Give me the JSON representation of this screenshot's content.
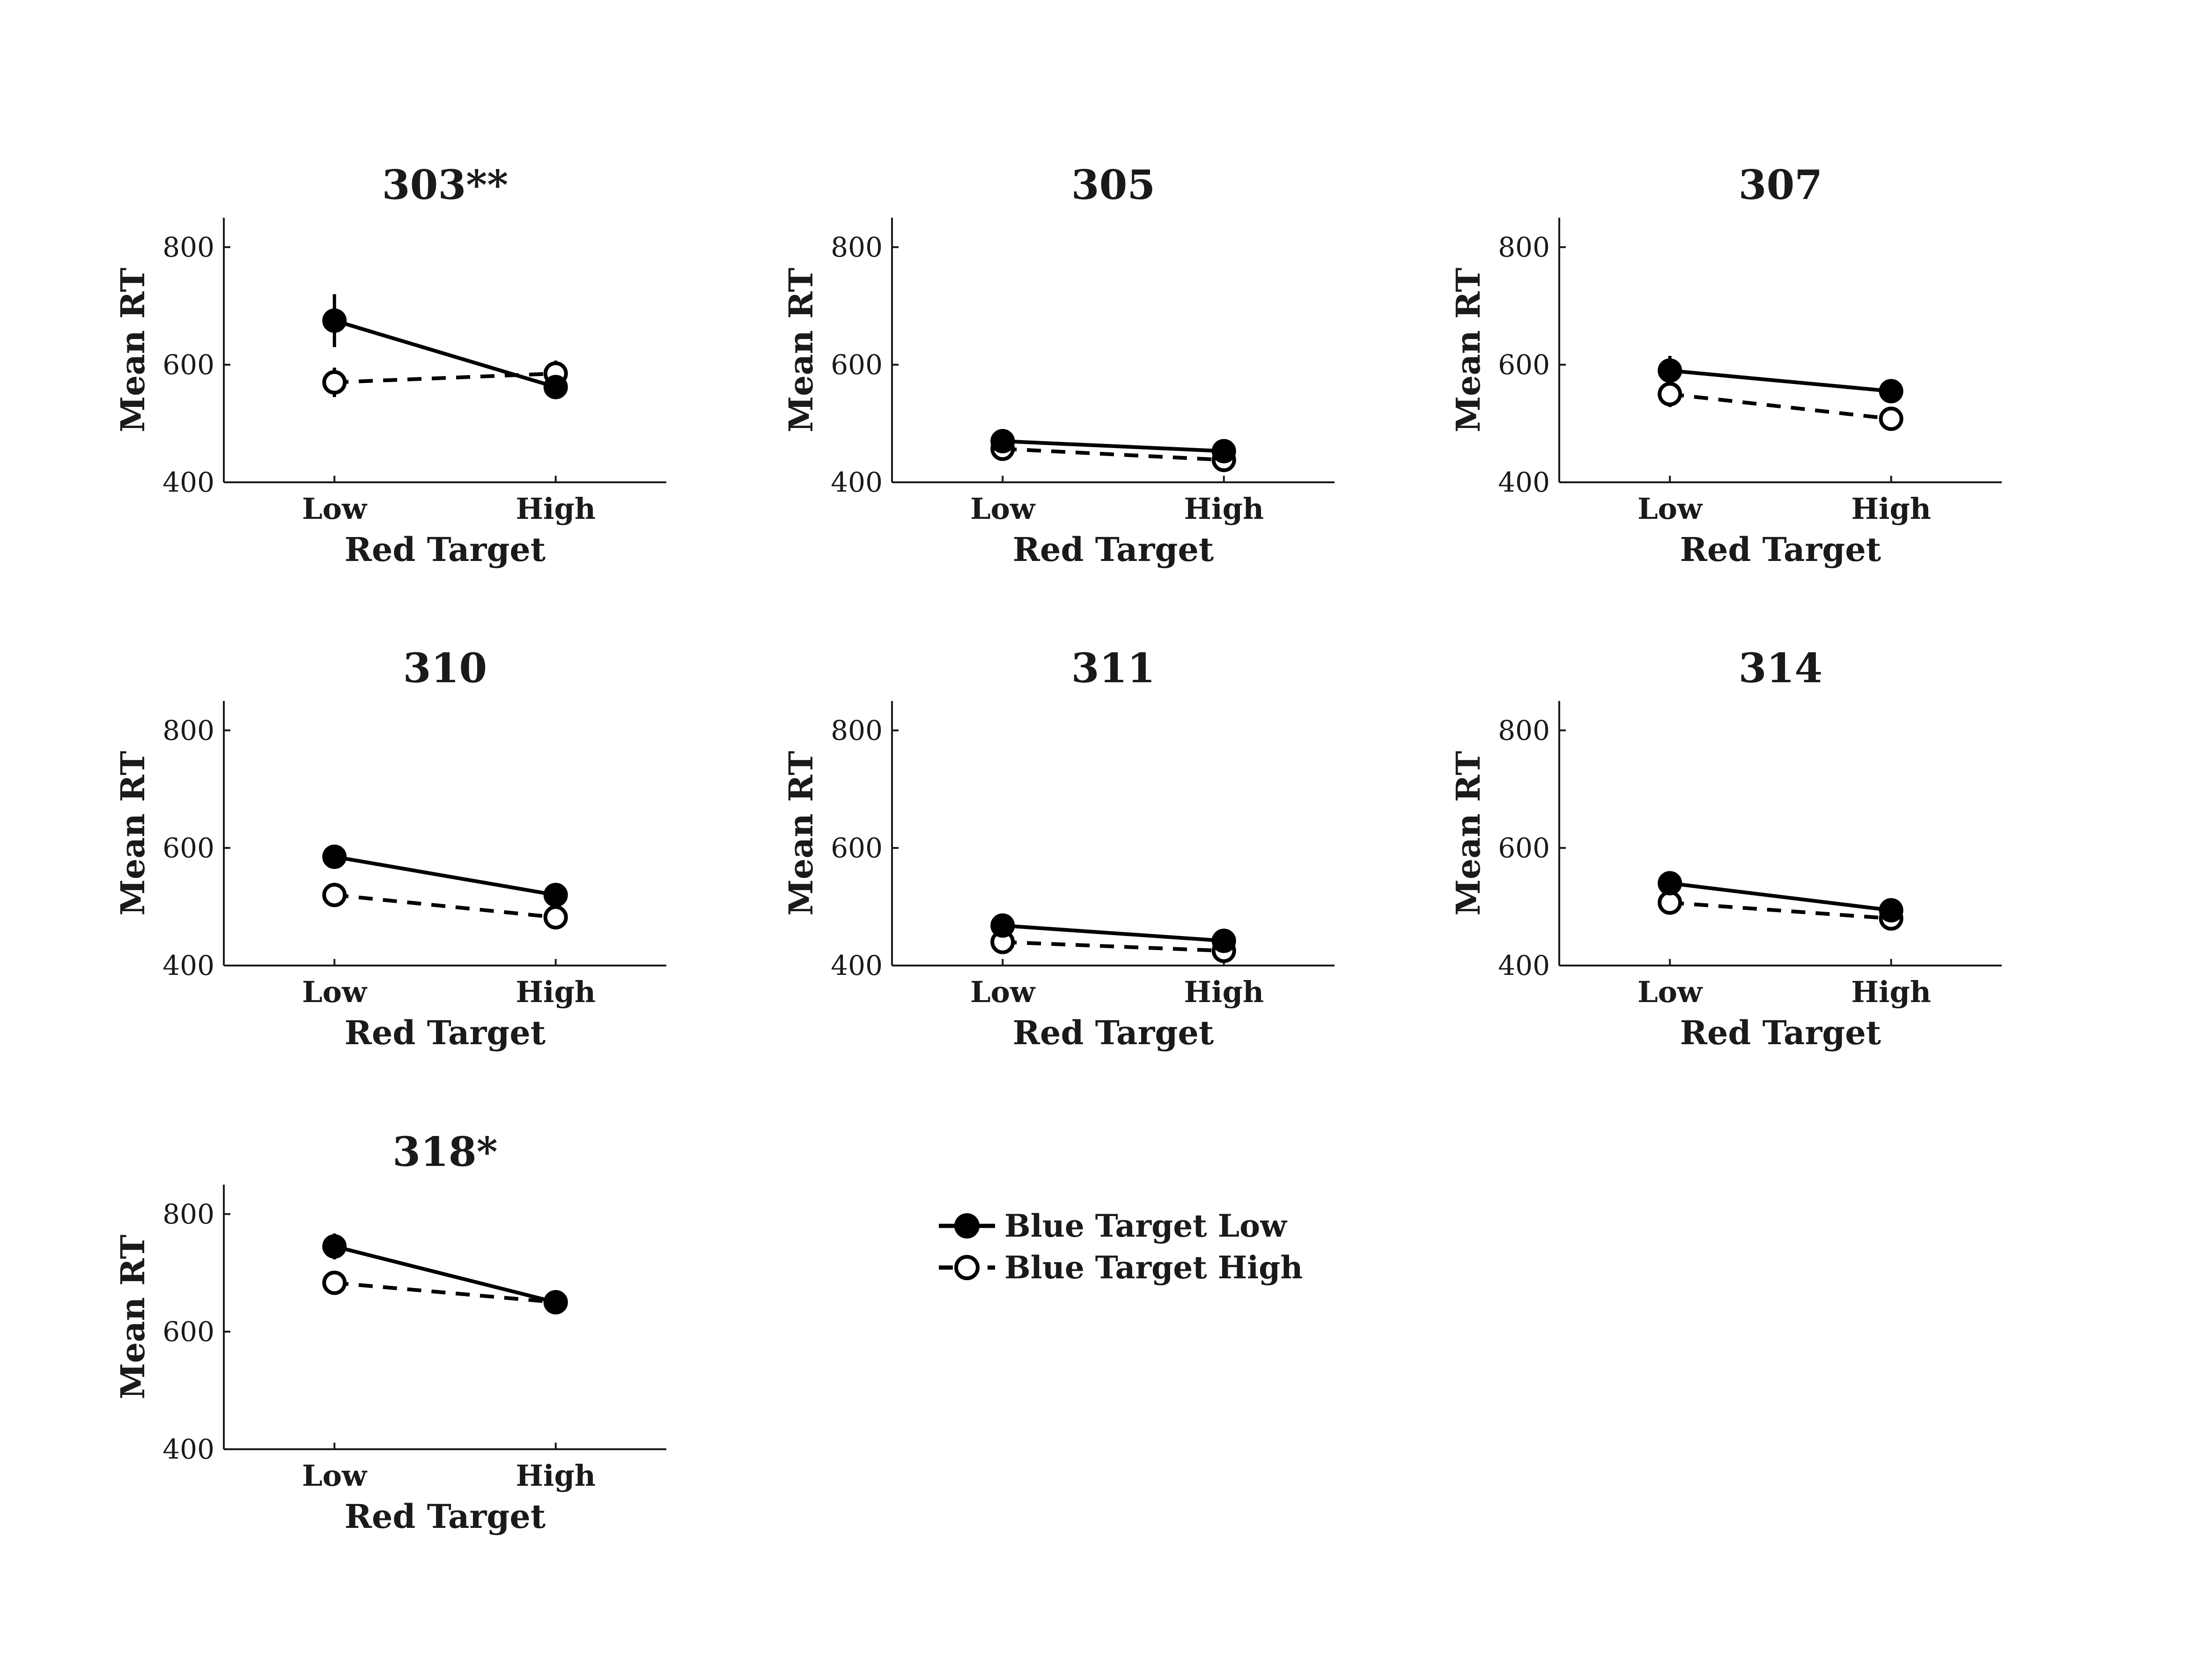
{
  "chart_data": [
    {
      "type": "line",
      "title": "303**",
      "xlabel": "Red Target",
      "ylabel": "Mean RT",
      "categories": [
        "Low",
        "High"
      ],
      "ylim": [
        400,
        850
      ],
      "yticks": [
        400,
        600,
        800
      ],
      "series": [
        {
          "name": "Blue Target Low",
          "values": [
            675,
            562
          ],
          "errors": [
            45,
            18
          ]
        },
        {
          "name": "Blue Target High",
          "values": [
            570,
            585
          ],
          "errors": [
            25,
            22
          ]
        }
      ]
    },
    {
      "type": "line",
      "title": "305",
      "xlabel": "Red Target",
      "ylabel": "Mean RT",
      "categories": [
        "Low",
        "High"
      ],
      "ylim": [
        400,
        850
      ],
      "yticks": [
        400,
        600,
        800
      ],
      "series": [
        {
          "name": "Blue Target Low",
          "values": [
            470,
            453
          ],
          "errors": [
            8,
            8
          ]
        },
        {
          "name": "Blue Target High",
          "values": [
            457,
            438
          ],
          "errors": [
            8,
            8
          ]
        }
      ]
    },
    {
      "type": "line",
      "title": "307",
      "xlabel": "Red Target",
      "ylabel": "Mean RT",
      "categories": [
        "Low",
        "High"
      ],
      "ylim": [
        400,
        850
      ],
      "yticks": [
        400,
        600,
        800
      ],
      "series": [
        {
          "name": "Blue Target Low",
          "values": [
            590,
            555
          ],
          "errors": [
            25,
            15
          ]
        },
        {
          "name": "Blue Target High",
          "values": [
            550,
            508
          ],
          "errors": [
            22,
            10
          ]
        }
      ]
    },
    {
      "type": "line",
      "title": "310",
      "xlabel": "Red Target",
      "ylabel": "Mean RT",
      "categories": [
        "Low",
        "High"
      ],
      "ylim": [
        400,
        850
      ],
      "yticks": [
        400,
        600,
        800
      ],
      "series": [
        {
          "name": "Blue Target Low",
          "values": [
            585,
            520
          ],
          "errors": [
            15,
            10
          ]
        },
        {
          "name": "Blue Target High",
          "values": [
            520,
            482
          ],
          "errors": [
            10,
            8
          ]
        }
      ]
    },
    {
      "type": "line",
      "title": "311",
      "xlabel": "Red Target",
      "ylabel": "Mean RT",
      "categories": [
        "Low",
        "High"
      ],
      "ylim": [
        400,
        850
      ],
      "yticks": [
        400,
        600,
        800
      ],
      "series": [
        {
          "name": "Blue Target Low",
          "values": [
            468,
            442
          ],
          "errors": [
            8,
            8
          ]
        },
        {
          "name": "Blue Target High",
          "values": [
            440,
            425
          ],
          "errors": [
            8,
            8
          ]
        }
      ]
    },
    {
      "type": "line",
      "title": "314",
      "xlabel": "Red Target",
      "ylabel": "Mean RT",
      "categories": [
        "Low",
        "High"
      ],
      "ylim": [
        400,
        850
      ],
      "yticks": [
        400,
        600,
        800
      ],
      "series": [
        {
          "name": "Blue Target Low",
          "values": [
            540,
            494
          ],
          "errors": [
            10,
            8
          ]
        },
        {
          "name": "Blue Target High",
          "values": [
            507,
            480
          ],
          "errors": [
            10,
            8
          ]
        }
      ]
    },
    {
      "type": "line",
      "title": "318*",
      "xlabel": "Red Target",
      "ylabel": "Mean RT",
      "categories": [
        "Low",
        "High"
      ],
      "ylim": [
        400,
        850
      ],
      "yticks": [
        400,
        600,
        800
      ],
      "series": [
        {
          "name": "Blue Target Low",
          "values": [
            745,
            650
          ],
          "errors": [
            22,
            10
          ]
        },
        {
          "name": "Blue Target High",
          "values": [
            683,
            650
          ],
          "errors": [
            15,
            10
          ]
        }
      ]
    }
  ],
  "legend": {
    "position": "center",
    "entries": [
      {
        "label": "Blue Target Low",
        "marker": "filled-circle",
        "line": "solid"
      },
      {
        "label": "Blue Target High",
        "marker": "open-circle",
        "line": "dashed"
      }
    ]
  },
  "colors": {
    "ink": "#000000",
    "text": "#1a1a1a",
    "background": "#ffffff"
  }
}
